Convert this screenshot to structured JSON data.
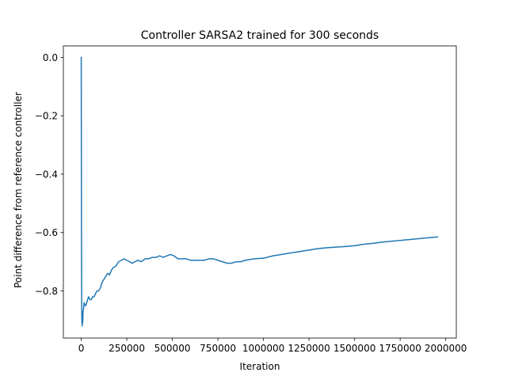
{
  "chart_data": {
    "type": "line",
    "title": "Controller SARSA2 trained for 300 seconds",
    "xlabel": "Iteration",
    "ylabel": "Point difference from reference controller",
    "xlim": [
      -98000,
      2058000
    ],
    "ylim": [
      -0.9615,
      0.0395
    ],
    "xticks": [
      {
        "value": 0,
        "label": "0"
      },
      {
        "value": 250000,
        "label": "250000"
      },
      {
        "value": 500000,
        "label": "500000"
      },
      {
        "value": 750000,
        "label": "750000"
      },
      {
        "value": 1000000,
        "label": "1000000"
      },
      {
        "value": 1250000,
        "label": "1250000"
      },
      {
        "value": 1500000,
        "label": "1500000"
      },
      {
        "value": 1750000,
        "label": "1750000"
      },
      {
        "value": 2000000,
        "label": "2000000"
      }
    ],
    "yticks": [
      {
        "value": 0.0,
        "label": "0.0"
      },
      {
        "value": -0.2,
        "label": "−0.2"
      },
      {
        "value": -0.4,
        "label": "−0.4"
      },
      {
        "value": -0.6,
        "label": "−0.6"
      },
      {
        "value": -0.8,
        "label": "−0.8"
      }
    ],
    "grid": false,
    "series": [
      {
        "color": "#1f77b4",
        "x": [
          0,
          1000,
          2000,
          3000,
          4000,
          5000,
          6000,
          8000,
          10000,
          13000,
          16000,
          20000,
          25000,
          30000,
          35000,
          40000,
          48000,
          55000,
          62000,
          70000,
          78000,
          86000,
          95000,
          105000,
          115000,
          125000,
          135000,
          145000,
          155000,
          165000,
          175000,
          190000,
          205000,
          220000,
          235000,
          250000,
          265000,
          280000,
          295000,
          310000,
          330000,
          350000,
          370000,
          390000,
          410000,
          430000,
          450000,
          470000,
          490000,
          510000,
          530000,
          550000,
          575000,
          600000,
          625000,
          650000,
          675000,
          700000,
          725000,
          750000,
          775000,
          800000,
          825000,
          850000,
          875000,
          900000,
          950000,
          1000000,
          1050000,
          1100000,
          1150000,
          1200000,
          1250000,
          1300000,
          1350000,
          1400000,
          1450000,
          1500000,
          1550000,
          1600000,
          1650000,
          1700000,
          1750000,
          1800000,
          1850000,
          1900000,
          1955000
        ],
        "y": [
          0.0,
          -0.5,
          -0.78,
          -0.88,
          -0.91,
          -0.92,
          -0.89,
          -0.91,
          -0.87,
          -0.86,
          -0.84,
          -0.85,
          -0.85,
          -0.84,
          -0.83,
          -0.82,
          -0.83,
          -0.83,
          -0.82,
          -0.82,
          -0.81,
          -0.8,
          -0.8,
          -0.79,
          -0.77,
          -0.76,
          -0.75,
          -0.74,
          -0.745,
          -0.73,
          -0.72,
          -0.715,
          -0.7,
          -0.695,
          -0.69,
          -0.695,
          -0.7,
          -0.705,
          -0.7,
          -0.695,
          -0.7,
          -0.69,
          -0.69,
          -0.685,
          -0.685,
          -0.68,
          -0.685,
          -0.68,
          -0.675,
          -0.68,
          -0.69,
          -0.69,
          -0.69,
          -0.695,
          -0.695,
          -0.695,
          -0.695,
          -0.69,
          -0.69,
          -0.695,
          -0.7,
          -0.705,
          -0.705,
          -0.7,
          -0.7,
          -0.695,
          -0.69,
          -0.688,
          -0.68,
          -0.675,
          -0.67,
          -0.665,
          -0.66,
          -0.655,
          -0.652,
          -0.65,
          -0.648,
          -0.645,
          -0.64,
          -0.637,
          -0.633,
          -0.63,
          -0.627,
          -0.624,
          -0.621,
          -0.618,
          -0.615
        ]
      }
    ]
  }
}
